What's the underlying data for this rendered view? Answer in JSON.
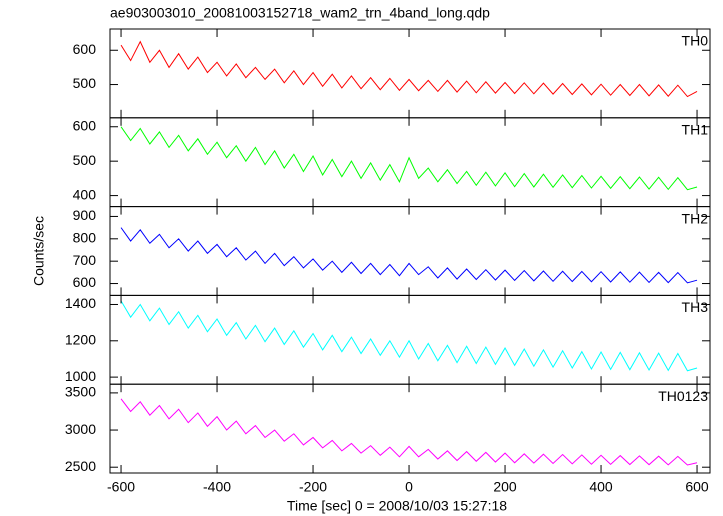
{
  "chart_data": {
    "type": "line",
    "title": "ae903003010_20081003152718_wam2_trn_4band_long.qdp",
    "xlabel": "Time [sec] 0 = 2008/10/03 15:27:18",
    "ylabel": "Counts/sec",
    "xlim": [
      -623,
      627
    ],
    "xticks": [
      -600,
      -400,
      -200,
      0,
      200,
      400,
      600
    ],
    "x": [
      -600,
      -580,
      -560,
      -540,
      -520,
      -500,
      -480,
      -460,
      -440,
      -420,
      -400,
      -380,
      -360,
      -340,
      -320,
      -300,
      -280,
      -260,
      -240,
      -220,
      -200,
      -180,
      -160,
      -140,
      -120,
      -100,
      -80,
      -60,
      -40,
      -20,
      0,
      20,
      40,
      60,
      80,
      100,
      120,
      140,
      160,
      180,
      200,
      220,
      240,
      260,
      280,
      300,
      320,
      340,
      360,
      380,
      400,
      420,
      440,
      460,
      480,
      500,
      520,
      540,
      560,
      580,
      600
    ],
    "panels": [
      {
        "name": "TH0",
        "color": "#ff0000",
        "ylim": [
          403,
          662
        ],
        "yticks": [
          500,
          600
        ],
        "values": [
          615,
          570,
          625,
          565,
          600,
          550,
          590,
          545,
          580,
          535,
          565,
          525,
          560,
          520,
          550,
          515,
          545,
          505,
          540,
          500,
          535,
          495,
          530,
          490,
          525,
          488,
          520,
          485,
          518,
          483,
          515,
          482,
          512,
          480,
          512,
          478,
          510,
          476,
          508,
          475,
          506,
          474,
          505,
          473,
          504,
          472,
          503,
          471,
          502,
          470,
          501,
          469,
          500,
          468,
          500,
          467,
          499,
          466,
          498,
          465,
          480
        ]
      },
      {
        "name": "TH1",
        "color": "#00ff00",
        "ylim": [
          368,
          626
        ],
        "yticks": [
          400,
          500,
          600
        ],
        "values": [
          600,
          560,
          595,
          550,
          585,
          540,
          575,
          530,
          565,
          520,
          555,
          510,
          545,
          500,
          540,
          490,
          530,
          480,
          520,
          470,
          515,
          460,
          505,
          455,
          500,
          450,
          495,
          445,
          490,
          440,
          510,
          450,
          480,
          440,
          475,
          435,
          470,
          430,
          468,
          428,
          466,
          426,
          464,
          425,
          462,
          424,
          460,
          423,
          458,
          422,
          456,
          421,
          455,
          420,
          454,
          419,
          453,
          418,
          452,
          417,
          425
        ]
      },
      {
        "name": "TH2",
        "color": "#0000ff",
        "ylim": [
          547,
          944
        ],
        "yticks": [
          600,
          700,
          800,
          900
        ],
        "values": [
          850,
          790,
          840,
          780,
          820,
          760,
          800,
          745,
          790,
          735,
          775,
          720,
          760,
          705,
          745,
          690,
          735,
          680,
          720,
          670,
          710,
          660,
          700,
          650,
          695,
          645,
          690,
          640,
          685,
          635,
          690,
          640,
          675,
          625,
          670,
          620,
          665,
          618,
          662,
          616,
          660,
          614,
          658,
          612,
          656,
          610,
          655,
          609,
          654,
          608,
          653,
          607,
          652,
          606,
          651,
          605,
          650,
          604,
          649,
          603,
          615
        ]
      },
      {
        "name": "TH3",
        "color": "#00ffff",
        "ylim": [
          961,
          1450
        ],
        "yticks": [
          1000,
          1200,
          1400
        ],
        "values": [
          1420,
          1330,
          1400,
          1310,
          1380,
          1290,
          1360,
          1270,
          1340,
          1250,
          1320,
          1230,
          1300,
          1210,
          1285,
          1195,
          1270,
          1180,
          1255,
          1165,
          1240,
          1150,
          1230,
          1140,
          1220,
          1130,
          1210,
          1120,
          1200,
          1110,
          1200,
          1100,
          1185,
          1090,
          1175,
          1080,
          1170,
          1075,
          1165,
          1070,
          1160,
          1065,
          1155,
          1060,
          1150,
          1055,
          1145,
          1050,
          1140,
          1045,
          1138,
          1043,
          1136,
          1041,
          1134,
          1039,
          1132,
          1037,
          1130,
          1035,
          1050
        ]
      },
      {
        "name": "TH0123",
        "color": "#ff00ff",
        "ylim": [
          2422,
          3617
        ],
        "yticks": [
          2500,
          3000,
          3500
        ],
        "values": [
          3420,
          3250,
          3380,
          3200,
          3330,
          3150,
          3280,
          3100,
          3230,
          3050,
          3180,
          3000,
          3120,
          2950,
          3060,
          2900,
          3000,
          2850,
          2950,
          2800,
          2900,
          2760,
          2860,
          2720,
          2820,
          2690,
          2790,
          2660,
          2770,
          2640,
          2780,
          2640,
          2740,
          2610,
          2720,
          2590,
          2710,
          2580,
          2700,
          2570,
          2690,
          2560,
          2680,
          2555,
          2675,
          2550,
          2670,
          2545,
          2665,
          2540,
          2660,
          2538,
          2656,
          2536,
          2652,
          2534,
          2648,
          2532,
          2645,
          2530,
          2560
        ]
      }
    ]
  }
}
